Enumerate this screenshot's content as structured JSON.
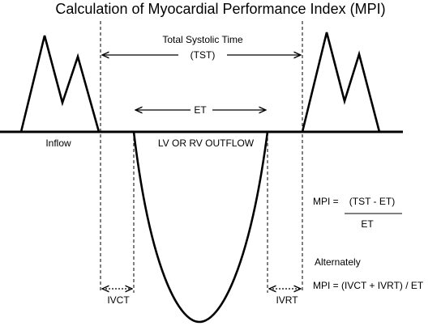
{
  "title": "Calculation of Myocardial Performance Index (MPI)",
  "labels": {
    "total_systolic_time": "Total Systolic Time",
    "tst_abbrev": "(TST)",
    "et": "ET",
    "inflow": "Inflow",
    "outflow": "LV OR RV OUTFLOW",
    "ivct": "IVCT",
    "ivrt": "IVRT"
  },
  "formulas": {
    "mpi_prefix": "MPI =",
    "numerator": "(TST - ET)",
    "denominator": "ET",
    "alternately": "Alternately",
    "alternate_formula": "MPI = (IVCT + IVRT) / ET"
  }
}
